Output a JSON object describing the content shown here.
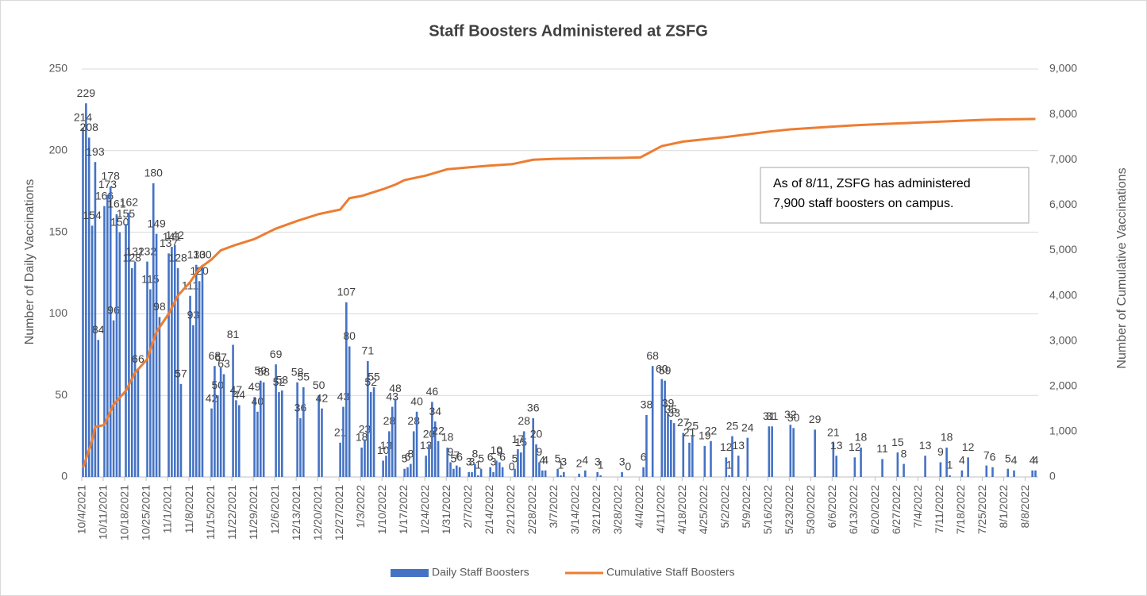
{
  "chart_data": {
    "type": "bar-line",
    "title": "Staff Boosters Administered at ZSFG",
    "y_label": "Number of Daily Vaccinations",
    "y2_label": "Number of Cumulative Vaccinations",
    "annotation": [
      "As of 8/11, ZSFG has administered",
      "7,900 staff boosters on campus."
    ],
    "xlim": [
      "10/4/2021",
      "8/11/2022"
    ],
    "xticks": [
      "10/4/2021",
      "10/11/2021",
      "10/18/2021",
      "10/25/2021",
      "11/1/2021",
      "11/8/2021",
      "11/15/2021",
      "11/22/2021",
      "11/29/2021",
      "12/6/2021",
      "12/13/2021",
      "12/20/2021",
      "12/27/2021",
      "1/3/2022",
      "1/10/2022",
      "1/17/2022",
      "1/24/2022",
      "1/31/2022",
      "2/7/2022",
      "2/14/2022",
      "2/21/2022",
      "2/28/2022",
      "3/7/2022",
      "3/14/2022",
      "3/21/2022",
      "3/28/2022",
      "4/4/2022",
      "4/11/2022",
      "4/18/2022",
      "4/25/2022",
      "5/2/2022",
      "5/9/2022",
      "5/16/2022",
      "5/23/2022",
      "5/30/2022",
      "6/6/2022",
      "6/13/2022",
      "6/20/2022",
      "6/27/2022",
      "7/4/2022",
      "7/11/2022",
      "7/18/2022",
      "7/25/2022",
      "8/1/2022",
      "8/8/2022"
    ],
    "ylim": [
      0,
      250
    ],
    "yticks": [
      0,
      50,
      100,
      150,
      200,
      250
    ],
    "y2lim": [
      0,
      9000
    ],
    "y2ticks": [
      0,
      {
        "value": 1000,
        "label": "1,000"
      },
      {
        "value": 2000,
        "label": "2,000"
      },
      {
        "value": 3000,
        "label": "3,000"
      },
      {
        "value": 4000,
        "label": "4,000"
      },
      {
        "value": 5000,
        "label": "5,000"
      },
      {
        "value": 6000,
        "label": "6,000"
      },
      {
        "value": 7000,
        "label": "7,000"
      },
      {
        "value": 8000,
        "label": "8,000"
      },
      {
        "value": 9000,
        "label": "9,000"
      }
    ],
    "grid": true,
    "legend": "bottom",
    "series": [
      {
        "name": "Daily Staff Boosters",
        "color": "#4472c4",
        "kind": "bar",
        "x": [
          "10/4/2021",
          "10/5/2021",
          "10/6/2021",
          "10/7/2021",
          "10/8/2021",
          "10/9/2021",
          "10/11/2021",
          "10/12/2021",
          "10/13/2021",
          "10/14/2021",
          "10/15/2021",
          "10/16/2021",
          "10/18/2021",
          "10/19/2021",
          "10/20/2021",
          "10/21/2021",
          "10/22/2021",
          "10/25/2021",
          "10/26/2021",
          "10/27/2021",
          "10/28/2021",
          "10/29/2021",
          "11/1/2021",
          "11/2/2021",
          "11/3/2021",
          "11/4/2021",
          "11/5/2021",
          "11/8/2021",
          "11/9/2021",
          "11/10/2021",
          "11/11/2021",
          "11/12/2021",
          "11/15/2021",
          "11/16/2021",
          "11/17/2021",
          "11/18/2021",
          "11/19/2021",
          "11/22/2021",
          "11/23/2021",
          "11/24/2021",
          "11/29/2021",
          "11/30/2021",
          "12/1/2021",
          "12/2/2021",
          "12/6/2021",
          "12/7/2021",
          "12/8/2021",
          "12/13/2021",
          "12/14/2021",
          "12/15/2021",
          "12/20/2021",
          "12/21/2021",
          "12/27/2021",
          "12/28/2021",
          "12/29/2021",
          "12/30/2021",
          "1/3/2022",
          "1/4/2022",
          "1/5/2022",
          "1/6/2022",
          "1/7/2022",
          "1/10/2022",
          "1/11/2022",
          "1/12/2022",
          "1/13/2022",
          "1/14/2022",
          "1/17/2022",
          "1/18/2022",
          "1/19/2022",
          "1/20/2022",
          "1/21/2022",
          "1/24/2022",
          "1/25/2022",
          "1/26/2022",
          "1/27/2022",
          "1/28/2022",
          "1/31/2022",
          "2/1/2022",
          "2/2/2022",
          "2/3/2022",
          "2/4/2022",
          "2/7/2022",
          "2/8/2022",
          "2/9/2022",
          "2/10/2022",
          "2/11/2022",
          "2/14/2022",
          "2/15/2022",
          "2/16/2022",
          "2/17/2022",
          "2/18/2022",
          "2/21/2022",
          "2/22/2022",
          "2/23/2022",
          "2/24/2022",
          "2/25/2022",
          "2/28/2022",
          "3/1/2022",
          "3/2/2022",
          "3/3/2022",
          "3/4/2022",
          "3/8/2022",
          "3/9/2022",
          "3/10/2022",
          "3/15/2022",
          "3/17/2022",
          "3/21/2022",
          "3/22/2022",
          "3/29/2022",
          "3/31/2022",
          "4/5/2022",
          "4/6/2022",
          "4/8/2022",
          "4/11/2022",
          "4/12/2022",
          "4/13/2022",
          "4/14/2022",
          "4/15/2022",
          "4/18/2022",
          "4/20/2022",
          "4/21/2022",
          "4/25/2022",
          "4/27/2022",
          "5/2/2022",
          "5/3/2022",
          "5/4/2022",
          "5/6/2022",
          "5/9/2022",
          "5/16/2022",
          "5/17/2022",
          "5/23/2022",
          "5/24/2022",
          "5/31/2022",
          "6/6/2022",
          "6/7/2022",
          "6/13/2022",
          "6/15/2022",
          "6/22/2022",
          "6/27/2022",
          "6/29/2022",
          "7/6/2022",
          "7/11/2022",
          "7/13/2022",
          "7/14/2022",
          "7/18/2022",
          "7/20/2022",
          "7/26/2022",
          "7/28/2022",
          "8/2/2022",
          "8/4/2022",
          "8/10/2022",
          "8/11/2022"
        ],
        "values": [
          214,
          229,
          208,
          154,
          193,
          84,
          166,
          173,
          178,
          96,
          161,
          150,
          155,
          162,
          128,
          132,
          66,
          132,
          115,
          180,
          149,
          98,
          137,
          141,
          142,
          128,
          57,
          111,
          93,
          130,
          120,
          130,
          42,
          68,
          50,
          67,
          63,
          81,
          47,
          44,
          49,
          40,
          59,
          58,
          69,
          52,
          53,
          58,
          36,
          55,
          50,
          42,
          21,
          43,
          107,
          80,
          18,
          23,
          71,
          52,
          55,
          10,
          13,
          28,
          43,
          48,
          5,
          6,
          8,
          28,
          40,
          13,
          20,
          46,
          34,
          22,
          18,
          9,
          5,
          7,
          6,
          3,
          3,
          8,
          1,
          5,
          6,
          3,
          10,
          9,
          6,
          0,
          5,
          17,
          15,
          28,
          36,
          20,
          9,
          4,
          4,
          5,
          1,
          3,
          2,
          4,
          3,
          1,
          3,
          0,
          6,
          38,
          68,
          60,
          59,
          39,
          35,
          33,
          27,
          21,
          25,
          19,
          22,
          12,
          1,
          25,
          13,
          24,
          31,
          31,
          32,
          30,
          29,
          21,
          13,
          12,
          18,
          11,
          15,
          8,
          13,
          9,
          18,
          1,
          4,
          12,
          7,
          6,
          5,
          4,
          4,
          4
        ]
      },
      {
        "name": "Cumulative Staff Boosters",
        "color": "#ed7d31",
        "kind": "line",
        "axis": "y2",
        "x": [
          "10/4/2021",
          "10/5/2021",
          "10/7/2021",
          "10/8/2021",
          "10/11/2021",
          "10/14/2021",
          "10/18/2021",
          "10/21/2021",
          "10/25/2021",
          "10/28/2021",
          "11/1/2021",
          "11/4/2021",
          "11/8/2021",
          "11/11/2021",
          "11/15/2021",
          "11/18/2021",
          "11/22/2021",
          "11/29/2021",
          "12/6/2021",
          "12/13/2021",
          "12/20/2021",
          "12/27/2021",
          "12/30/2021",
          "1/3/2022",
          "1/10/2022",
          "1/14/2022",
          "1/17/2022",
          "1/24/2022",
          "1/31/2022",
          "2/7/2022",
          "2/14/2022",
          "2/21/2022",
          "2/28/2022",
          "3/7/2022",
          "3/14/2022",
          "3/21/2022",
          "3/28/2022",
          "4/4/2022",
          "4/11/2022",
          "4/18/2022",
          "4/25/2022",
          "5/2/2022",
          "5/9/2022",
          "5/16/2022",
          "5/23/2022",
          "5/30/2022",
          "6/6/2022",
          "6/13/2022",
          "6/20/2022",
          "6/27/2022",
          "7/4/2022",
          "7/11/2022",
          "7/18/2022",
          "7/25/2022",
          "8/1/2022",
          "8/11/2022"
        ],
        "values": [
          200,
          400,
          800,
          1100,
          1150,
          1600,
          1900,
          2300,
          2600,
          3200,
          3600,
          4000,
          4300,
          4600,
          4800,
          5000,
          5100,
          5250,
          5480,
          5650,
          5800,
          5900,
          6150,
          6200,
          6350,
          6450,
          6550,
          6650,
          6790,
          6830,
          6870,
          6900,
          7000,
          7020,
          7025,
          7035,
          7040,
          7050,
          7300,
          7400,
          7450,
          7500,
          7560,
          7620,
          7670,
          7700,
          7730,
          7760,
          7780,
          7800,
          7820,
          7840,
          7860,
          7880,
          7890,
          7900
        ]
      }
    ]
  }
}
